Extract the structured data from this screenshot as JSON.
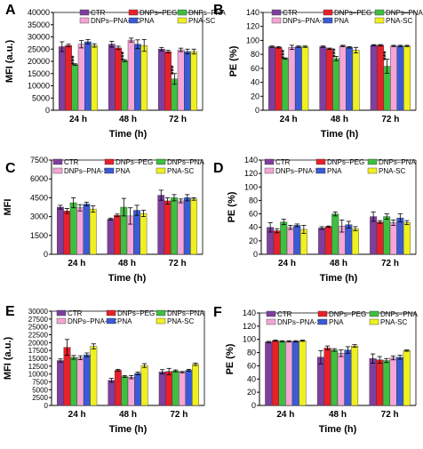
{
  "colors": {
    "CTR": "#7f3f9f",
    "DNPs–PEG": "#e8202a",
    "DNPs–PNA": "#3fbf3f",
    "DNPs–PNA-SC": "#f4a6d6",
    "PNA": "#3b5bd6",
    "PNA-SC": "#f0f020"
  },
  "chart_data": [
    {
      "panel": "A",
      "type": "bar",
      "categories": [
        "24 h",
        "48 h",
        "72 h"
      ],
      "xlabel": "Time (h)",
      "ylabel": "MFI (a.u.)",
      "ylim": [
        0,
        40000
      ],
      "yticks": [
        0,
        5000,
        10000,
        15000,
        20000,
        25000,
        30000,
        35000,
        40000
      ],
      "series": [
        {
          "name": "CTR",
          "values": [
            26000,
            27000,
            25000
          ],
          "errors": [
            2000,
            1200,
            700
          ]
        },
        {
          "name": "DNPs–PEG",
          "values": [
            26500,
            25500,
            24000
          ],
          "errors": [
            500,
            700,
            500
          ]
        },
        {
          "name": "DNPs–PNA",
          "values": [
            18700,
            20300,
            12800
          ],
          "errors": [
            300,
            400,
            2200
          ]
        },
        {
          "name": "DNPs–PNA-SC",
          "values": [
            27000,
            28700,
            24700
          ],
          "errors": [
            1500,
            800,
            700
          ]
        },
        {
          "name": "PNA",
          "values": [
            28000,
            27000,
            24000
          ],
          "errors": [
            900,
            1800,
            1000
          ]
        },
        {
          "name": "PNA-SC",
          "values": [
            26500,
            26500,
            24000
          ],
          "errors": [
            700,
            2400,
            1000
          ]
        }
      ],
      "annotations": [
        {
          "category": 0,
          "series": 2,
          "text": "***"
        },
        {
          "category": 1,
          "series": 2,
          "text": "***"
        },
        {
          "category": 2,
          "series": 2,
          "text": "***"
        }
      ]
    },
    {
      "panel": "B",
      "type": "bar",
      "categories": [
        "24 h",
        "48 h",
        "72 h"
      ],
      "xlabel": "Time (h)",
      "ylabel": "PE (%)",
      "ylim": [
        0,
        140
      ],
      "yticks": [
        0,
        20,
        40,
        60,
        80,
        100,
        120,
        140
      ],
      "series": [
        {
          "name": "CTR",
          "values": [
            91,
            91,
            93
          ],
          "errors": [
            1,
            1,
            1
          ]
        },
        {
          "name": "DNPs–PEG",
          "values": [
            90,
            88,
            93
          ],
          "errors": [
            1,
            1,
            1
          ]
        },
        {
          "name": "DNPs–PNA",
          "values": [
            74,
            74,
            63
          ],
          "errors": [
            1,
            3,
            10
          ]
        },
        {
          "name": "DNPs–PNA-SC",
          "values": [
            90,
            92,
            92
          ],
          "errors": [
            3,
            1,
            1
          ]
        },
        {
          "name": "PNA",
          "values": [
            91,
            90,
            92
          ],
          "errors": [
            1,
            1,
            1
          ]
        },
        {
          "name": "PNA-SC",
          "values": [
            91,
            86,
            92
          ],
          "errors": [
            1,
            4,
            1
          ]
        }
      ],
      "annotations": [
        {
          "category": 0,
          "series": 2,
          "text": "***"
        },
        {
          "category": 1,
          "series": 2,
          "text": "***"
        },
        {
          "category": 2,
          "series": 2,
          "text": "***"
        }
      ]
    },
    {
      "panel": "C",
      "type": "bar",
      "categories": [
        "24 h",
        "48 h",
        "72 h"
      ],
      "xlabel": "Time (h)",
      "ylabel": "MFI",
      "ylim": [
        0,
        7500
      ],
      "yticks": [
        0,
        1500,
        3000,
        4500,
        6000,
        7500
      ],
      "series": [
        {
          "name": "CTR",
          "values": [
            3750,
            2800,
            4700
          ],
          "errors": [
            150,
            80,
            400
          ]
        },
        {
          "name": "DNPs–PEG",
          "values": [
            3450,
            3100,
            4250
          ],
          "errors": [
            200,
            100,
            250
          ]
        },
        {
          "name": "DNPs–PNA",
          "values": [
            4100,
            3750,
            4500
          ],
          "errors": [
            400,
            700,
            250
          ]
        },
        {
          "name": "DNPs–PNA-SC",
          "values": [
            3700,
            3050,
            4250
          ],
          "errors": [
            250,
            650,
            150
          ]
        },
        {
          "name": "PNA",
          "values": [
            4000,
            3500,
            4500
          ],
          "errors": [
            150,
            400,
            250
          ]
        },
        {
          "name": "PNA-SC",
          "values": [
            3600,
            3250,
            4400
          ],
          "errors": [
            250,
            250,
            100
          ]
        }
      ]
    },
    {
      "panel": "D",
      "type": "bar",
      "categories": [
        "24 h",
        "48 h",
        "72 h"
      ],
      "xlabel": "Time (h)",
      "ylabel": "PE (%)",
      "ylim": [
        0,
        140
      ],
      "yticks": [
        0,
        20,
        40,
        60,
        80,
        100,
        120,
        140
      ],
      "series": [
        {
          "name": "CTR",
          "values": [
            40,
            39,
            56
          ],
          "errors": [
            7,
            2,
            7
          ]
        },
        {
          "name": "DNPs–PEG",
          "values": [
            35,
            41,
            48
          ],
          "errors": [
            3,
            1,
            2
          ]
        },
        {
          "name": "DNPs–PNA",
          "values": [
            48,
            60,
            56
          ],
          "errors": [
            4,
            3,
            4
          ]
        },
        {
          "name": "DNPs–PNA-SC",
          "values": [
            40,
            42,
            47
          ],
          "errors": [
            3,
            9,
            4
          ]
        },
        {
          "name": "PNA",
          "values": [
            43,
            44,
            54
          ],
          "errors": [
            2,
            5,
            6
          ]
        },
        {
          "name": "PNA-SC",
          "values": [
            37,
            38,
            47
          ],
          "errors": [
            6,
            3,
            3
          ]
        }
      ]
    },
    {
      "panel": "E",
      "type": "bar",
      "categories": [
        "24 h",
        "48 h",
        "72 h"
      ],
      "xlabel": "Time (h)",
      "ylabel": "MFI (a.u.)",
      "ylim": [
        0,
        30000
      ],
      "yticks": [
        0,
        2500,
        5000,
        7500,
        10000,
        12500,
        15000,
        17500,
        20000,
        22500,
        25000,
        27500,
        30000
      ],
      "series": [
        {
          "name": "CTR",
          "values": [
            14300,
            8000,
            10700
          ],
          "errors": [
            500,
            600,
            700
          ]
        },
        {
          "name": "DNPs–PEG",
          "values": [
            18500,
            11200,
            10800
          ],
          "errors": [
            2500,
            300,
            1000
          ]
        },
        {
          "name": "DNPs–PNA",
          "values": [
            15300,
            9200,
            11000
          ],
          "errors": [
            600,
            300,
            300
          ]
        },
        {
          "name": "DNPs–PNA-SC",
          "values": [
            15200,
            9000,
            10600
          ],
          "errors": [
            600,
            500,
            200
          ]
        },
        {
          "name": "PNA",
          "values": [
            16100,
            10200,
            11200
          ],
          "errors": [
            600,
            400,
            300
          ]
        },
        {
          "name": "PNA-SC",
          "values": [
            18800,
            12700,
            13100
          ],
          "errors": [
            800,
            600,
            400
          ]
        }
      ]
    },
    {
      "panel": "F",
      "type": "bar",
      "categories": [
        "24 h",
        "48 h",
        "72 h"
      ],
      "xlabel": "Time (h)",
      "ylabel": "PE (%)",
      "ylim": [
        0,
        140
      ],
      "yticks": [
        0,
        20,
        40,
        60,
        80,
        100,
        120,
        140
      ],
      "series": [
        {
          "name": "CTR",
          "values": [
            96,
            73,
            71
          ],
          "errors": [
            1,
            10,
            7
          ]
        },
        {
          "name": "DNPs–PEG",
          "values": [
            98,
            87,
            69
          ],
          "errors": [
            1,
            3,
            5
          ]
        },
        {
          "name": "DNPs–PNA",
          "values": [
            97,
            84,
            68
          ],
          "errors": [
            1,
            2,
            3
          ]
        },
        {
          "name": "DNPs–PNA-SC",
          "values": [
            97,
            79,
            72
          ],
          "errors": [
            1,
            5,
            3
          ]
        },
        {
          "name": "PNA",
          "values": [
            97,
            84,
            73
          ],
          "errors": [
            1,
            5,
            3
          ]
        },
        {
          "name": "PNA-SC",
          "values": [
            98,
            90,
            83
          ],
          "errors": [
            1,
            2,
            1
          ]
        }
      ]
    }
  ]
}
